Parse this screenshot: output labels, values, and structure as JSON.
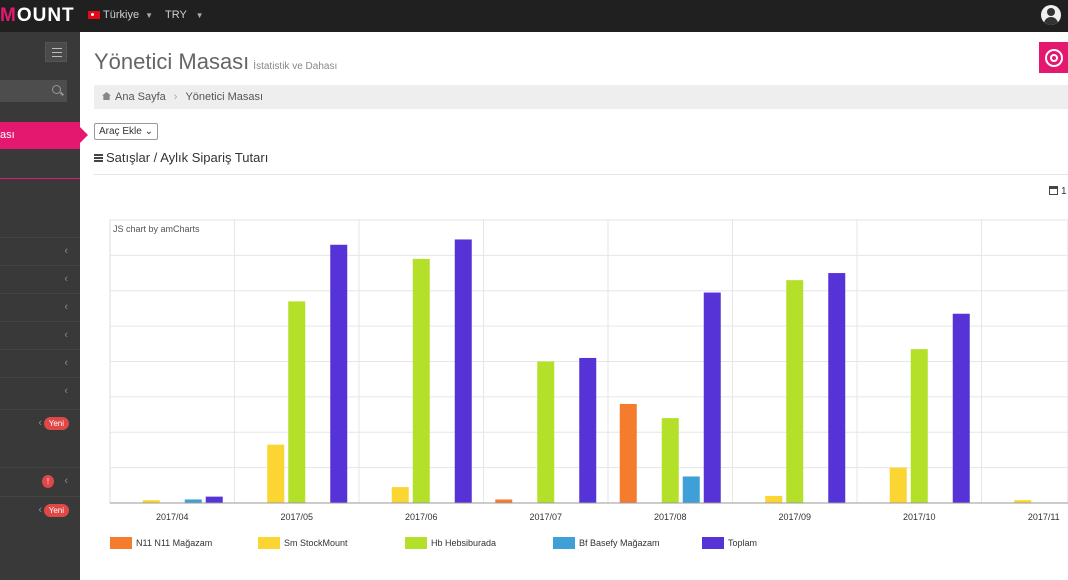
{
  "topbar": {
    "logo_accent": "M",
    "logo_rest": "OUNT",
    "language": "Türkiye",
    "currency": "TRY"
  },
  "sidebar": {
    "active_item": "ası",
    "badges": {
      "new_1": "Yeni",
      "alert": "!",
      "new_2": "Yeni"
    }
  },
  "header": {
    "title": "Yönetici Masası",
    "subtitle": "İstatistik ve Dahası"
  },
  "breadcrumb": [
    "Ana Sayfa",
    "Yönetici Masası"
  ],
  "toolbar": {
    "add_tool": "Araç Ekle"
  },
  "section": {
    "title": "Satışlar / Aylık Sipariş Tutarı",
    "date_hint": "1"
  },
  "chart_credit": "JS chart by amCharts",
  "colors": {
    "brand": "#e5186f",
    "topbar": "#202020",
    "sidebar": "#393939"
  },
  "chart_data": {
    "type": "bar",
    "categories": [
      "2017/04",
      "2017/05",
      "2017/06",
      "2017/07",
      "2017/08",
      "2017/09",
      "2017/10",
      "2017/11"
    ],
    "ylim": [
      0,
      8
    ],
    "grid": true,
    "legend_position": "bottom",
    "series": [
      {
        "name": "N11 N11 Mağazam",
        "color": "#f47c2c",
        "values": [
          0,
          0,
          0,
          0.1,
          2.8,
          0,
          0,
          0
        ]
      },
      {
        "name": "Sm StockMount",
        "color": "#fbd632",
        "values": [
          0.08,
          1.65,
          0.45,
          0,
          0,
          0.2,
          1.0,
          0.08
        ]
      },
      {
        "name": "Hb Hebsiburada",
        "color": "#b4e02a",
        "values": [
          0,
          5.7,
          6.9,
          4.0,
          2.4,
          6.3,
          4.35,
          0
        ]
      },
      {
        "name": "Bf Basefy Mağazam",
        "color": "#3ea0d6",
        "values": [
          0.1,
          0,
          0,
          0,
          0.75,
          0,
          0,
          0
        ]
      },
      {
        "name": "Toplam",
        "color": "#5533d6",
        "values": [
          0.18,
          7.3,
          7.45,
          4.1,
          5.95,
          6.5,
          5.35,
          0
        ]
      }
    ]
  }
}
